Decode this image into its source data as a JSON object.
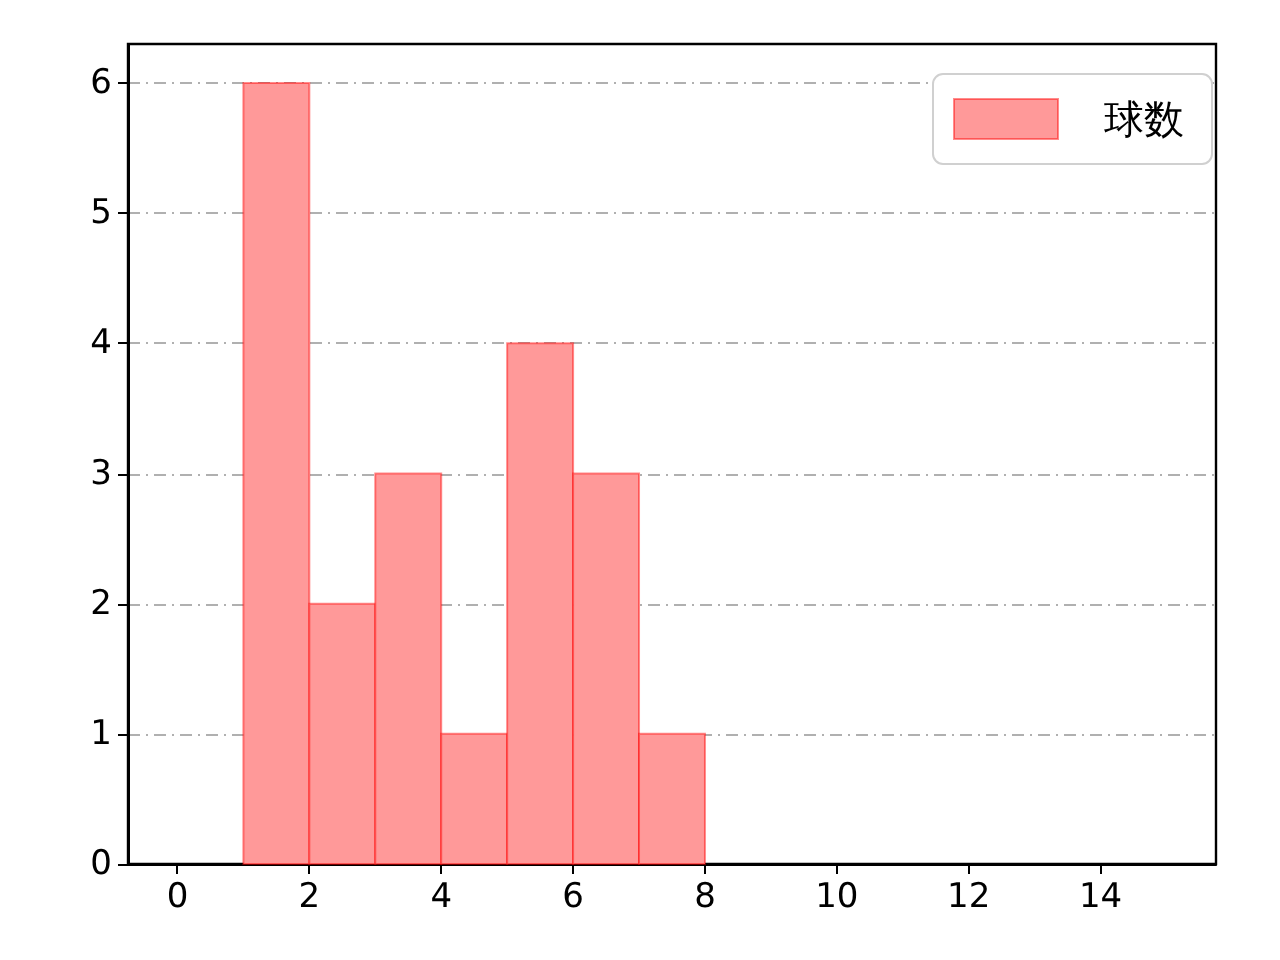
{
  "chart_data": {
    "type": "histogram",
    "bins": [
      1,
      2,
      3,
      4,
      5,
      6,
      7,
      8
    ],
    "series": [
      {
        "name": "球数",
        "color": "#ff9999",
        "values": [
          6,
          2,
          3,
          1,
          4,
          3,
          1
        ]
      }
    ],
    "xlim": [
      -0.75,
      15.75
    ],
    "xticks": [
      0,
      2,
      4,
      6,
      8,
      10,
      12,
      14
    ],
    "ylim": [
      0,
      6.3
    ],
    "yticks": [
      0,
      1,
      2,
      3,
      4,
      5,
      6
    ],
    "grid": "y",
    "legend": "top right"
  }
}
